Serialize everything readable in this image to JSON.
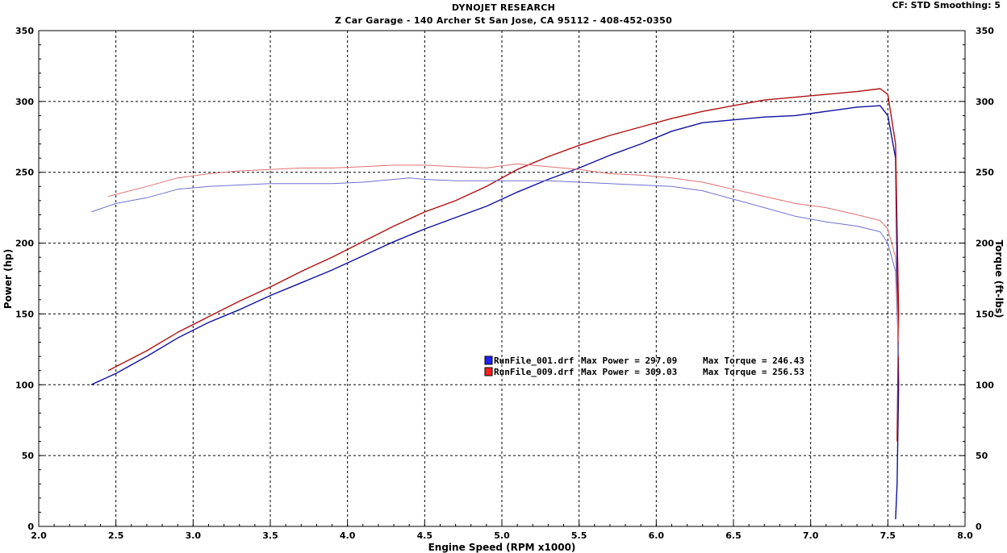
{
  "header": {
    "title": "DYNOJET RESEARCH",
    "subtitle": "Z Car Garage - 140 Archer St San Jose, CA 95112 - 408-452-0350",
    "settings": "CF: STD  Smoothing: 5"
  },
  "chart_data": {
    "type": "line",
    "xlabel": "Engine Speed (RPM x1000)",
    "ylabel": "Power (hp)",
    "y2label": "Torque (ft-lbs)",
    "xlim": [
      2.0,
      8.0
    ],
    "ylim": [
      0,
      350
    ],
    "y2lim": [
      0,
      350
    ],
    "x_ticks": [
      "2.0",
      "2.5",
      "3.0",
      "3.5",
      "4.0",
      "4.5",
      "5.0",
      "5.5",
      "6.0",
      "6.5",
      "7.0",
      "7.5",
      "8.0"
    ],
    "y_ticks": [
      "0",
      "50",
      "100",
      "150",
      "200",
      "250",
      "300",
      "350"
    ],
    "y2_ticks": [
      "0",
      "50",
      "100",
      "150",
      "200",
      "250",
      "300",
      "350"
    ],
    "grid": true,
    "legend": [
      {
        "file": "RunFile_001.drf",
        "max_power_label": "Max Power = 297.09",
        "max_torque_label": "Max Torque = 246.43",
        "color": "#2020ff"
      },
      {
        "file": "RunFile_009.drf",
        "max_power_label": "Max Power = 309.03",
        "max_torque_label": "Max Torque = 256.53",
        "color": "#ff2020"
      }
    ],
    "series": [
      {
        "run": "RunFile_001.drf",
        "measure": "power",
        "axis": "left",
        "color": "#1010a0",
        "x": [
          2.34,
          2.5,
          2.7,
          2.9,
          3.1,
          3.3,
          3.5,
          3.7,
          3.9,
          4.1,
          4.3,
          4.5,
          4.7,
          4.9,
          5.1,
          5.3,
          5.5,
          5.7,
          5.9,
          6.1,
          6.3,
          6.5,
          6.7,
          6.9,
          7.1,
          7.3,
          7.45,
          7.5,
          7.55,
          7.57,
          7.56,
          7.55
        ],
        "values": [
          100,
          108,
          120,
          133,
          144,
          153,
          163,
          172,
          181,
          191,
          201,
          210,
          218,
          226,
          236,
          245,
          253,
          262,
          270,
          279,
          285,
          287,
          289,
          290,
          293,
          296,
          297,
          290,
          260,
          100,
          30,
          5
        ]
      },
      {
        "run": "RunFile_009.drf",
        "measure": "power",
        "axis": "left",
        "color": "#b01010",
        "x": [
          2.45,
          2.7,
          2.9,
          3.1,
          3.3,
          3.5,
          3.7,
          3.9,
          4.1,
          4.3,
          4.5,
          4.7,
          4.9,
          5.1,
          5.3,
          5.5,
          5.7,
          5.9,
          6.1,
          6.3,
          6.5,
          6.7,
          6.9,
          7.1,
          7.3,
          7.45,
          7.5,
          7.55,
          7.57,
          7.56
        ],
        "values": [
          110,
          124,
          137,
          148,
          159,
          169,
          180,
          190,
          201,
          212,
          222,
          230,
          240,
          252,
          261,
          269,
          276,
          282,
          288,
          293,
          297,
          301,
          303,
          305,
          307,
          309,
          305,
          270,
          150,
          60
        ]
      },
      {
        "run": "RunFile_001.drf",
        "measure": "torque",
        "axis": "right",
        "color": "#7070d0",
        "x": [
          2.34,
          2.5,
          2.7,
          2.9,
          3.1,
          3.3,
          3.5,
          3.7,
          3.9,
          4.1,
          4.3,
          4.4,
          4.5,
          4.7,
          4.9,
          5.1,
          5.3,
          5.5,
          5.7,
          5.9,
          6.1,
          6.3,
          6.5,
          6.7,
          6.9,
          7.1,
          7.3,
          7.45,
          7.5,
          7.55,
          7.57
        ],
        "values": [
          222,
          228,
          232,
          238,
          240,
          241,
          242,
          242,
          242,
          243,
          245,
          246,
          245,
          244,
          244,
          244,
          244,
          243,
          242,
          241,
          240,
          237,
          231,
          225,
          219,
          215,
          212,
          208,
          200,
          180,
          120
        ]
      },
      {
        "run": "RunFile_009.drf",
        "measure": "torque",
        "axis": "right",
        "color": "#e07070",
        "x": [
          2.45,
          2.7,
          2.9,
          3.1,
          3.3,
          3.5,
          3.7,
          3.9,
          4.1,
          4.3,
          4.5,
          4.7,
          4.9,
          5.1,
          5.3,
          5.5,
          5.7,
          5.9,
          6.1,
          6.3,
          6.5,
          6.7,
          6.9,
          7.1,
          7.3,
          7.45,
          7.5,
          7.55,
          7.57
        ],
        "values": [
          233,
          240,
          246,
          249,
          251,
          252,
          253,
          253,
          254,
          255,
          255,
          254,
          253,
          256,
          254,
          252,
          249,
          248,
          246,
          243,
          238,
          233,
          228,
          225,
          220,
          216,
          210,
          190,
          130
        ]
      }
    ]
  }
}
